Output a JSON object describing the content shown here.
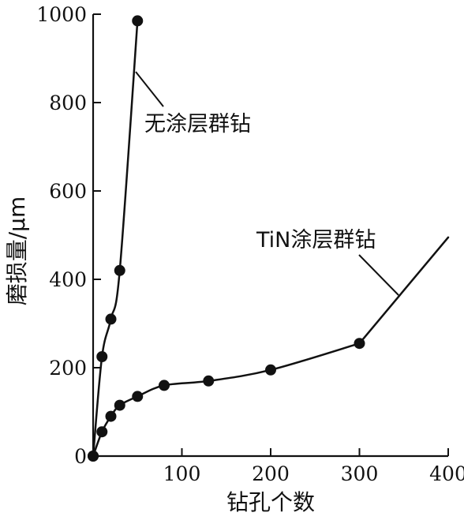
{
  "chart_data": {
    "type": "line",
    "title": "",
    "xlabel": "钻孔个数",
    "ylabel": "磨损量/μm",
    "xlim": [
      0,
      400
    ],
    "ylim": [
      0,
      1000
    ],
    "x_ticks": [
      "100",
      "200",
      "300",
      "400"
    ],
    "y_ticks": [
      "0",
      "200",
      "400",
      "600",
      "800",
      "1000"
    ],
    "grid": false,
    "legend": "none",
    "series": [
      {
        "name": "无涂层群钻",
        "x": [
          0,
          10,
          20,
          30,
          50
        ],
        "y": [
          0,
          225,
          310,
          420,
          985
        ]
      },
      {
        "name": "TiN涂层群钻",
        "x": [
          0,
          10,
          20,
          30,
          50,
          80,
          130,
          200,
          300
        ],
        "y": [
          0,
          55,
          90,
          115,
          135,
          160,
          170,
          195,
          255
        ],
        "extended_line": {
          "x": [
            300,
            400
          ],
          "y": [
            255,
            495
          ]
        }
      }
    ]
  }
}
